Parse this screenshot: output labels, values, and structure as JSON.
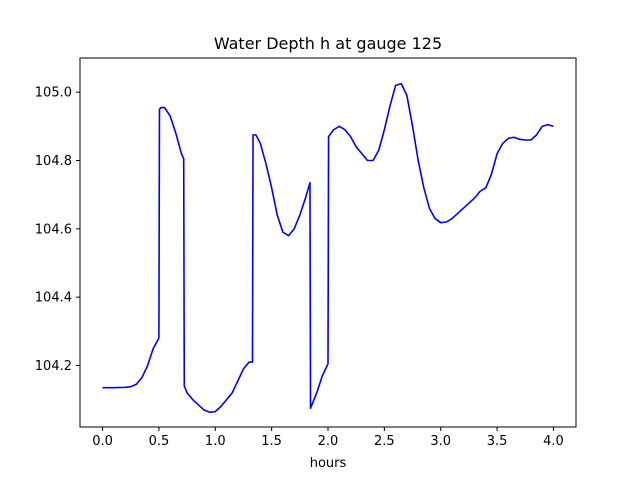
{
  "chart_data": {
    "type": "line",
    "title": "Water Depth h at gauge 125",
    "xlabel": "hours",
    "ylabel": "",
    "xlim": [
      -0.2,
      4.2
    ],
    "ylim": [
      104.02,
      105.1
    ],
    "xticks": [
      0.0,
      0.5,
      1.0,
      1.5,
      2.0,
      2.5,
      3.0,
      3.5,
      4.0
    ],
    "xtick_labels": [
      "0.0",
      "0.5",
      "1.0",
      "1.5",
      "2.0",
      "2.5",
      "3.0",
      "3.5",
      "4.0"
    ],
    "yticks": [
      104.2,
      104.4,
      104.6,
      104.8,
      105.0
    ],
    "ytick_labels": [
      "104.2",
      "104.4",
      "104.6",
      "104.8",
      "105.0"
    ],
    "grid": false,
    "series": [
      {
        "color": "#0000ff",
        "x": [
          0.0,
          0.1,
          0.2,
          0.25,
          0.3,
          0.35,
          0.4,
          0.45,
          0.5,
          0.505,
          0.52,
          0.55,
          0.6,
          0.65,
          0.7,
          0.72,
          0.725,
          0.75,
          0.8,
          0.85,
          0.9,
          0.95,
          1.0,
          1.05,
          1.1,
          1.15,
          1.2,
          1.25,
          1.3,
          1.33,
          1.335,
          1.36,
          1.4,
          1.45,
          1.5,
          1.55,
          1.6,
          1.65,
          1.7,
          1.75,
          1.8,
          1.84,
          1.845,
          1.9,
          1.95,
          2.0,
          2.005,
          2.05,
          2.1,
          2.15,
          2.2,
          2.25,
          2.3,
          2.35,
          2.4,
          2.45,
          2.5,
          2.55,
          2.6,
          2.65,
          2.7,
          2.75,
          2.8,
          2.85,
          2.9,
          2.95,
          3.0,
          3.05,
          3.1,
          3.15,
          3.2,
          3.25,
          3.3,
          3.35,
          3.4,
          3.45,
          3.5,
          3.55,
          3.6,
          3.65,
          3.7,
          3.75,
          3.8,
          3.85,
          3.9,
          3.95,
          4.0
        ],
        "y": [
          104.135,
          104.135,
          104.136,
          104.138,
          104.145,
          104.165,
          104.2,
          104.25,
          104.28,
          104.95,
          104.955,
          104.955,
          104.93,
          104.88,
          104.82,
          104.805,
          104.14,
          104.12,
          104.1,
          104.085,
          104.07,
          104.063,
          104.065,
          104.08,
          104.1,
          104.12,
          104.155,
          104.19,
          104.21,
          104.21,
          104.875,
          104.875,
          104.85,
          104.79,
          104.72,
          104.64,
          104.59,
          104.58,
          104.6,
          104.64,
          104.69,
          104.735,
          104.075,
          104.12,
          104.17,
          104.205,
          104.87,
          104.89,
          104.9,
          104.89,
          104.87,
          104.84,
          104.82,
          104.8,
          104.8,
          104.83,
          104.89,
          104.96,
          105.02,
          105.025,
          104.99,
          104.9,
          104.8,
          104.72,
          104.66,
          104.63,
          104.618,
          104.62,
          104.63,
          104.645,
          104.66,
          104.675,
          104.69,
          104.71,
          104.72,
          104.76,
          104.82,
          104.85,
          104.865,
          104.868,
          104.862,
          104.86,
          104.86,
          104.875,
          104.9,
          104.905,
          104.9
        ]
      }
    ]
  }
}
